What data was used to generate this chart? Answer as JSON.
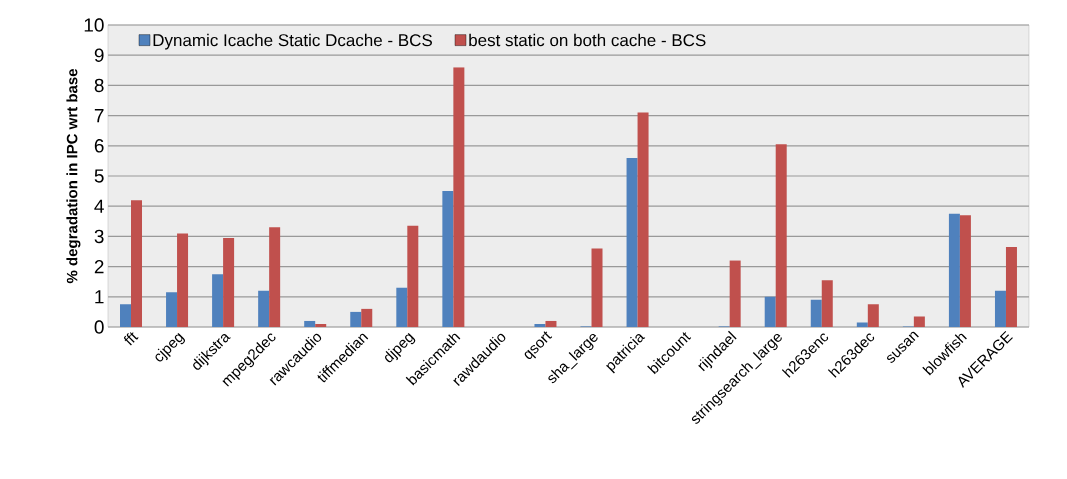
{
  "chart_data": {
    "type": "bar",
    "ylabel": "% degradation in IPC wrt base",
    "categories": [
      "fft",
      "cjpeg",
      "dijkstra",
      "mpeg2dec",
      "rawcaudio",
      "tiffmedian",
      "djpeg",
      "basicmath",
      "rawdaudio",
      "qsort",
      "sha_large",
      "patricia",
      "bitcount",
      "rijndael",
      "stringsearch_large",
      "h263enc",
      "h263dec",
      "susan",
      "blowfish",
      "AVERAGE"
    ],
    "series": [
      {
        "name": "Dynamic Icache Static Dcache - BCS",
        "color": "#4f81bd",
        "values": [
          0.75,
          1.15,
          1.75,
          1.2,
          0.2,
          0.5,
          1.3,
          4.5,
          null,
          0.1,
          0.02,
          5.6,
          null,
          0.02,
          1.0,
          0.9,
          0.15,
          0.02,
          3.75,
          1.2
        ]
      },
      {
        "name": "best static on both cache - BCS",
        "color": "#c0504d",
        "values": [
          4.2,
          3.1,
          2.95,
          3.3,
          0.1,
          0.6,
          3.35,
          8.6,
          null,
          0.2,
          2.6,
          7.1,
          null,
          2.2,
          6.05,
          1.55,
          0.75,
          0.35,
          3.7,
          2.65
        ]
      }
    ],
    "ylim": [
      0,
      10
    ],
    "yticks": [
      0,
      1,
      2,
      3,
      4,
      5,
      6,
      7,
      8,
      9,
      10
    ],
    "grid": "y",
    "legend": "top"
  }
}
